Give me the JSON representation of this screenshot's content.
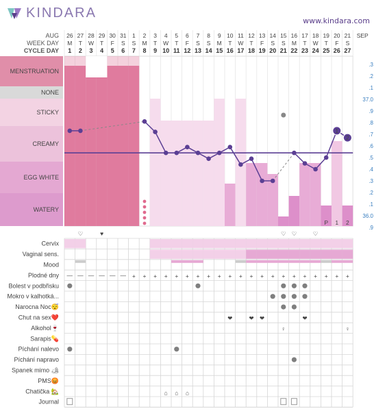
{
  "header": {
    "logo_text": "KINDARA",
    "website": "www.kindara.com"
  },
  "labels": {
    "month": "AUG",
    "next_month": "SEP",
    "week_day": "WEEK DAY",
    "cycle_day": "CYCLE DAY"
  },
  "days": [
    {
      "date": "26",
      "wd": "M",
      "cd": "1"
    },
    {
      "date": "27",
      "wd": "T",
      "cd": "2"
    },
    {
      "date": "28",
      "wd": "W",
      "cd": "3"
    },
    {
      "date": "29",
      "wd": "T",
      "cd": "4"
    },
    {
      "date": "30",
      "wd": "F",
      "cd": "5"
    },
    {
      "date": "31",
      "wd": "S",
      "cd": "6"
    },
    {
      "date": "1",
      "wd": "S",
      "cd": "7"
    },
    {
      "date": "2",
      "wd": "M",
      "cd": "8"
    },
    {
      "date": "3",
      "wd": "T",
      "cd": "9"
    },
    {
      "date": "4",
      "wd": "W",
      "cd": "10"
    },
    {
      "date": "5",
      "wd": "T",
      "cd": "11"
    },
    {
      "date": "6",
      "wd": "F",
      "cd": "12"
    },
    {
      "date": "7",
      "wd": "S",
      "cd": "13"
    },
    {
      "date": "8",
      "wd": "S",
      "cd": "14"
    },
    {
      "date": "9",
      "wd": "M",
      "cd": "15"
    },
    {
      "date": "10",
      "wd": "T",
      "cd": "16"
    },
    {
      "date": "11",
      "wd": "W",
      "cd": "17"
    },
    {
      "date": "12",
      "wd": "T",
      "cd": "18"
    },
    {
      "date": "13",
      "wd": "F",
      "cd": "19"
    },
    {
      "date": "14",
      "wd": "S",
      "cd": "20"
    },
    {
      "date": "15",
      "wd": "S",
      "cd": "21"
    },
    {
      "date": "16",
      "wd": "M",
      "cd": "22"
    },
    {
      "date": "17",
      "wd": "T",
      "cd": "23"
    },
    {
      "date": "18",
      "wd": "W",
      "cd": "24"
    },
    {
      "date": "19",
      "wd": "T",
      "cd": "25"
    },
    {
      "date": "20",
      "wd": "F",
      "cd": "26"
    },
    {
      "date": "21",
      "wd": "S",
      "cd": "27"
    }
  ],
  "fluid_bands": [
    {
      "label": "MENSTRUATION",
      "color": "#e08ea9"
    },
    {
      "label": "NONE",
      "color": "#d9d9d9"
    },
    {
      "label": "STICKY",
      "color": "#f3d3e3"
    },
    {
      "label": "CREAMY",
      "color": "#ecc2db"
    },
    {
      "label": "EGG WHITE",
      "color": "#e4a8d2"
    },
    {
      "label": "WATERY",
      "color": "#dd9bcd"
    }
  ],
  "temp_scale": [
    ".3",
    ".2",
    ".1",
    "37.0",
    ".9",
    ".8",
    ".7",
    ".6",
    ".5",
    ".4",
    ".3",
    ".2",
    ".1",
    "36.0",
    ".9"
  ],
  "temperatures": [
    {
      "day": 1,
      "t": 36.73
    },
    {
      "day": 2,
      "t": 36.73
    },
    {
      "day": 8,
      "t": 36.81
    },
    {
      "day": 9,
      "t": 36.72
    },
    {
      "day": 10,
      "t": 36.54
    },
    {
      "day": 11,
      "t": 36.54
    },
    {
      "day": 12,
      "t": 36.59
    },
    {
      "day": 13,
      "t": 36.54
    },
    {
      "day": 14,
      "t": 36.49
    },
    {
      "day": 15,
      "t": 36.54
    },
    {
      "day": 16,
      "t": 36.59
    },
    {
      "day": 17,
      "t": 36.44
    },
    {
      "day": 18,
      "t": 36.49
    },
    {
      "day": 19,
      "t": 36.3
    },
    {
      "day": 20,
      "t": 36.3
    },
    {
      "day": 22,
      "t": 36.54
    },
    {
      "day": 23,
      "t": 36.45
    },
    {
      "day": 24,
      "t": 36.4
    },
    {
      "day": 25,
      "t": 36.5
    },
    {
      "day": 26,
      "t": 36.73
    },
    {
      "day": 27,
      "t": 36.67
    }
  ],
  "coverline": 36.54,
  "sticky_marker_day": 21,
  "peak_markers": [
    {
      "day": 26,
      "label": "1"
    },
    {
      "day": 27,
      "label": "2"
    }
  ],
  "peak_letters": [
    {
      "day": 25,
      "label": "P"
    },
    {
      "day": 26,
      "label": "1"
    },
    {
      "day": 27,
      "label": "2"
    }
  ],
  "fluid_bars": [
    {
      "day": 1,
      "level": "menstruation"
    },
    {
      "day": 2,
      "level": "menstruation"
    },
    {
      "day": 3,
      "level": "menstruation-low"
    },
    {
      "day": 4,
      "level": "menstruation-low"
    },
    {
      "day": 5,
      "level": "menstruation"
    },
    {
      "day": 6,
      "level": "menstruation"
    },
    {
      "day": 7,
      "level": "menstruation"
    },
    {
      "day": 9,
      "level": "sticky-top"
    },
    {
      "day": 10,
      "level": "sticky"
    },
    {
      "day": 11,
      "level": "sticky"
    },
    {
      "day": 12,
      "level": "sticky"
    },
    {
      "day": 13,
      "level": "sticky"
    },
    {
      "day": 14,
      "level": "sticky"
    },
    {
      "day": 15,
      "level": "sticky-top"
    },
    {
      "day": 16,
      "level": "eggwhite-low"
    },
    {
      "day": 17,
      "level": "sticky-top"
    },
    {
      "day": 18,
      "level": "eggwhite"
    },
    {
      "day": 19,
      "level": "eggwhite"
    },
    {
      "day": 20,
      "level": "watery"
    },
    {
      "day": 21,
      "level": "watery-low"
    },
    {
      "day": 22,
      "level": "watery-mid"
    },
    {
      "day": 23,
      "level": "eggwhite"
    },
    {
      "day": 24,
      "level": "eggwhite"
    },
    {
      "day": 25,
      "level": "watery-low2"
    },
    {
      "day": 26,
      "level": "creamy"
    },
    {
      "day": 27,
      "level": "watery-low2"
    }
  ],
  "spotting_day": 8,
  "sex_hearts": [
    {
      "day": 2,
      "outline": true
    },
    {
      "day": 4,
      "outline": false
    },
    {
      "day": 21,
      "outline": true
    },
    {
      "day": 22,
      "outline": true
    },
    {
      "day": 24,
      "outline": true
    }
  ],
  "symptom_rows": [
    {
      "label": "Cervix"
    },
    {
      "label": "Vaginal sens."
    },
    {
      "label": "Mood"
    },
    {
      "label": "Plodné dny"
    },
    {
      "label": "Bolest v podbřisku"
    },
    {
      "label": "Mokro v kalhotká..."
    },
    {
      "label": "Narocna Noc😴"
    },
    {
      "label": "Chut na sex❤️"
    },
    {
      "label": "Alkohol🍷"
    },
    {
      "label": "Sarapis💊"
    },
    {
      "label": "Píchání nalevo"
    },
    {
      "label": "Píchání napravo"
    },
    {
      "label": "Spanek mimo 🏕"
    },
    {
      "label": "PMS😡"
    },
    {
      "label": "Chatička 🏡"
    },
    {
      "label": "Journal"
    }
  ],
  "symptoms": {
    "fertile_minus_days": [
      1,
      2,
      3,
      4,
      5,
      6
    ],
    "fertile_plus_days": [
      7,
      8,
      9,
      10,
      11,
      12,
      13,
      14,
      15,
      16,
      17,
      18,
      19,
      20,
      21,
      22,
      23,
      24,
      25,
      26,
      27
    ],
    "bolest": [
      1,
      13,
      21,
      22,
      23
    ],
    "mokro": [
      20,
      21,
      22,
      23
    ],
    "narocna": [
      21,
      22
    ],
    "chut": [
      16,
      18,
      19,
      23
    ],
    "alkohol": [
      21,
      27
    ],
    "pichani_nalevo": [
      1,
      11
    ],
    "pichani_napravo": [
      22
    ],
    "chaticka": [
      10,
      11,
      12
    ],
    "journal": [
      1,
      21,
      22
    ]
  },
  "colors": {
    "accent": "#5a3e8a",
    "line": "#5b3f94",
    "temp_axis": "#3a7fc0"
  }
}
